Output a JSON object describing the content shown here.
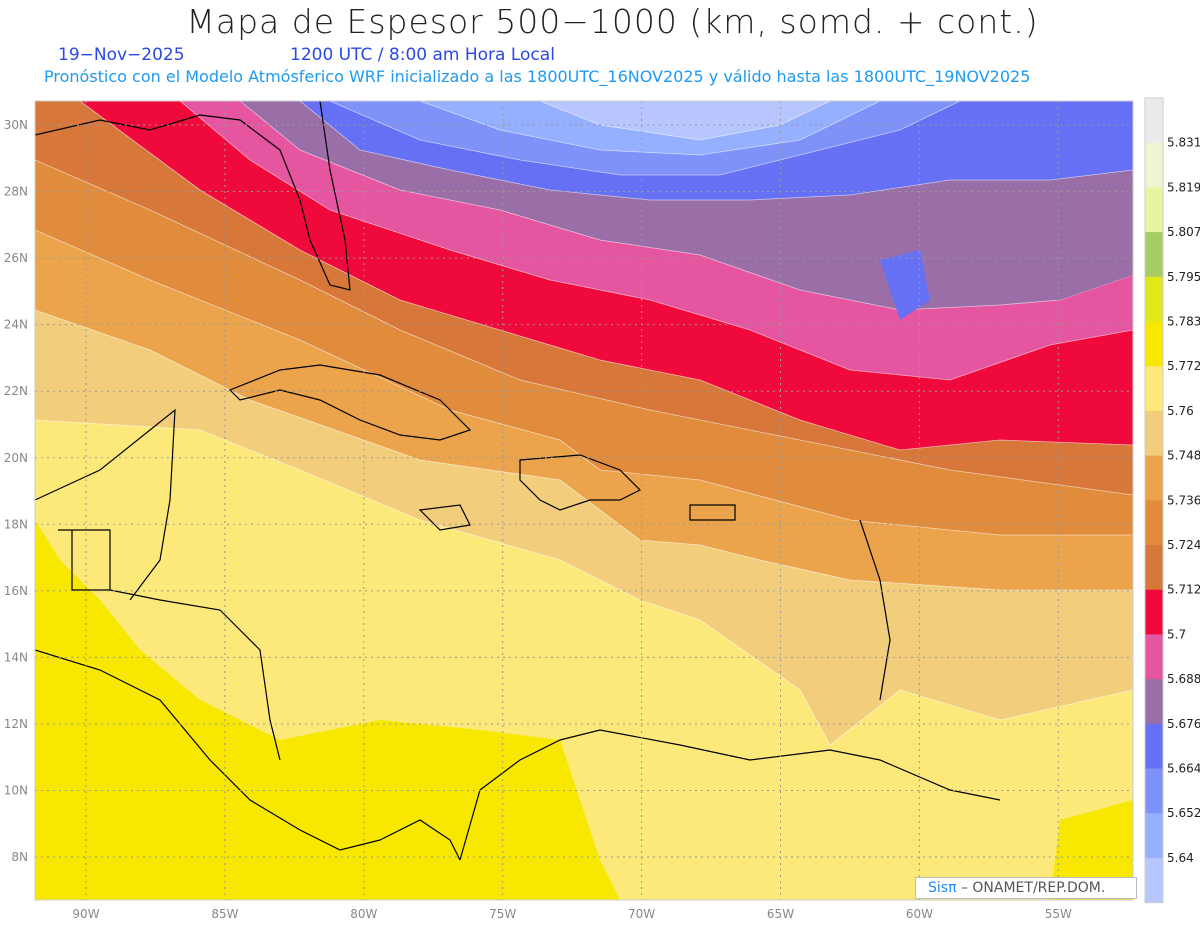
{
  "title": "Mapa de Espesor 500−1000 (km, somd. + cont.)",
  "date": "19−Nov−2025",
  "time": "1200 UTC / 8:00 am Hora Local",
  "subtitle": "Pronóstico con el Modelo Atmósferico WRF inicializado a las 1800UTC_16NOV2025 y válido hasta las  1800UTC_19NOV2025",
  "credit": {
    "brand": "Sisπ",
    "text": " –  ONAMET/REP.DOM."
  },
  "axes": {
    "lon_labels": [
      "90W",
      "85W",
      "80W",
      "75W",
      "70W",
      "65W",
      "60W",
      "55W"
    ],
    "lat_labels": [
      "30N",
      "28N",
      "26N",
      "24N",
      "22N",
      "20N",
      "18N",
      "16N",
      "14N",
      "12N",
      "10N",
      "8N"
    ]
  },
  "legend": {
    "levels": [
      "5.831",
      "5.819",
      "5.807",
      "5.795",
      "5.783",
      "5.772",
      "5.76",
      "5.748",
      "5.736",
      "5.724",
      "5.712",
      "5.7",
      "5.688",
      "5.676",
      "5.664",
      "5.652",
      "5.64"
    ],
    "colors": [
      "#ebebeb",
      "#eef5d2",
      "#e6f5a0",
      "#a8cc64",
      "#e0e81a",
      "#f8e800",
      "#fce97a",
      "#f2cd7c",
      "#eba44c",
      "#e08c3c",
      "#d8773a",
      "#f00a3c",
      "#e6559f",
      "#9a6fa8",
      "#6570f5",
      "#7e92fa",
      "#94b0ff",
      "#b8c6ff"
    ]
  }
}
